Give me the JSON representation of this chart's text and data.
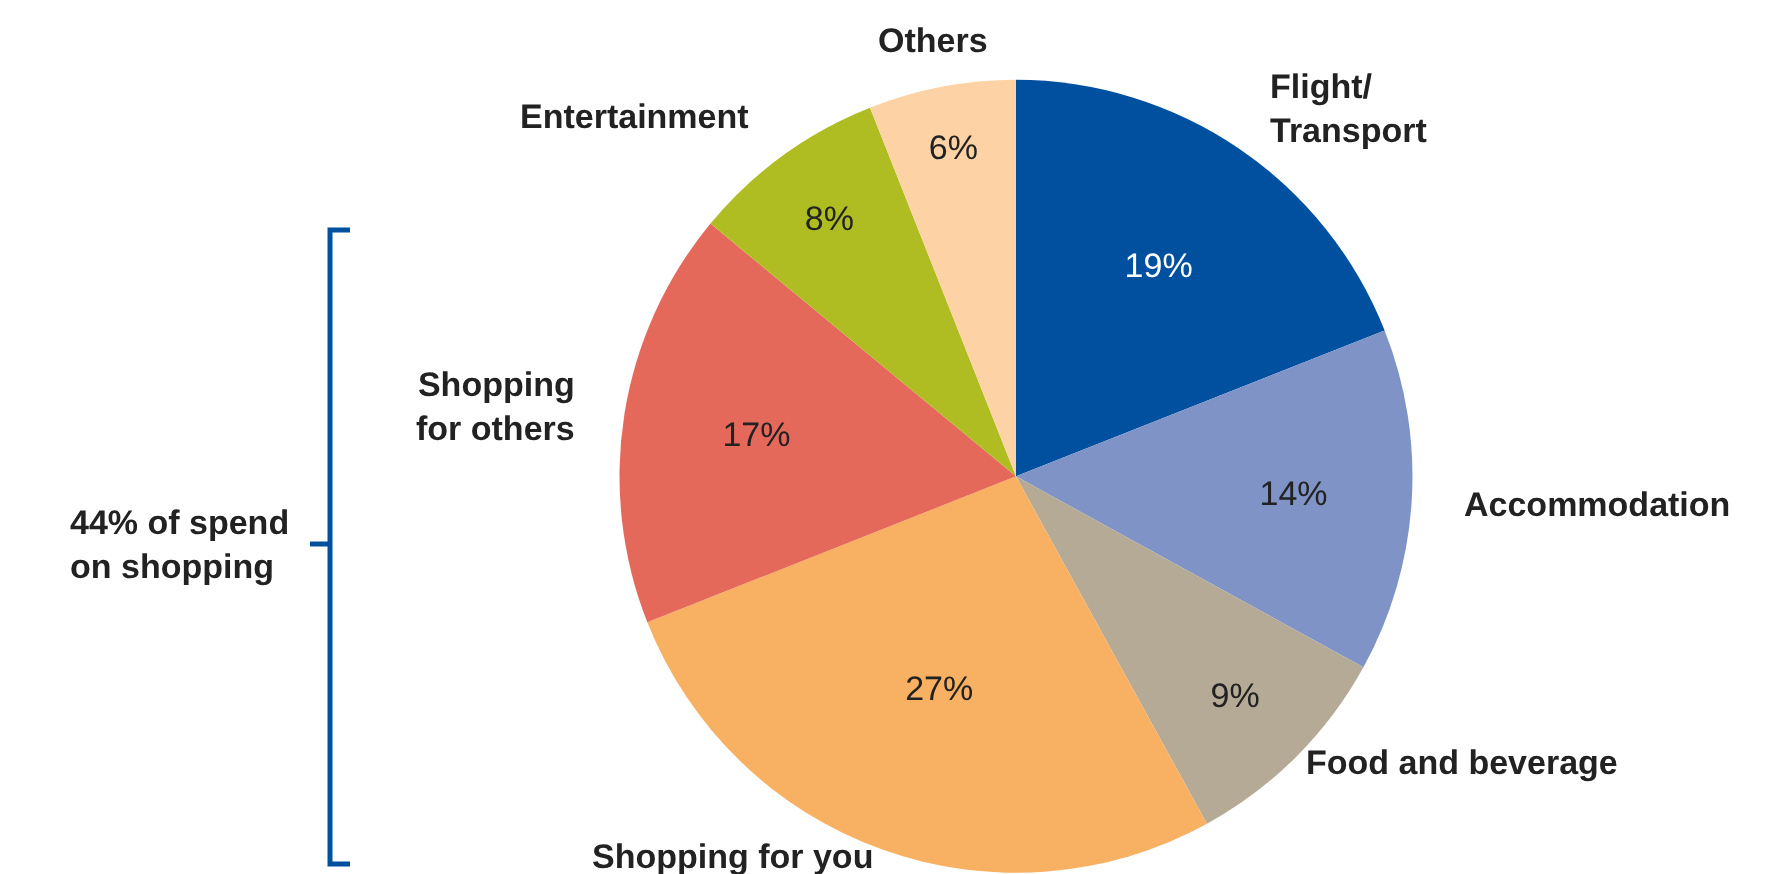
{
  "chart_data": {
    "type": "pie",
    "categories": [
      "Flight/\nTransport",
      "Accommodation",
      "Food and beverage",
      "Shopping for you",
      "Shopping\nfor others",
      "Entertainment",
      "Others"
    ],
    "values": [
      19,
      14,
      9,
      27,
      17,
      8,
      6
    ],
    "value_labels": [
      "19%",
      "14%",
      "9%",
      "27%",
      "17%",
      "8%",
      "6%"
    ],
    "colors": [
      "#0050a0",
      "#7f93c6",
      "#b5aa95",
      "#f8b062",
      "#e5695b",
      "#afbd22",
      "#fdd3a6"
    ],
    "annotations": [
      "44% of spend\non shopping"
    ],
    "legend": false
  }
}
